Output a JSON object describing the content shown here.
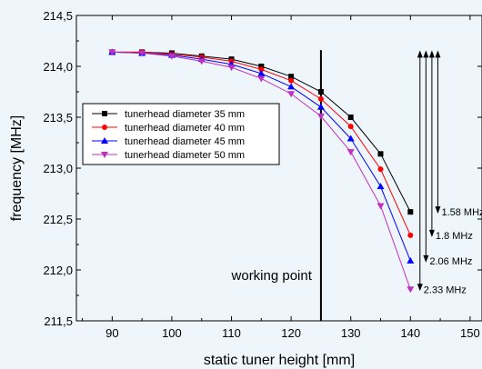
{
  "chart_data": {
    "type": "line",
    "xlabel": "static tuner height [mm]",
    "ylabel": "frequency [MHz]",
    "xlim": [
      84,
      152
    ],
    "ylim": [
      211.5,
      214.5
    ],
    "x_ticks": [
      90,
      100,
      110,
      120,
      130,
      140,
      150
    ],
    "y_ticks": [
      211.5,
      212.0,
      212.5,
      213.0,
      213.5,
      214.0,
      214.5
    ],
    "x_tick_labels": [
      "90",
      "100",
      "110",
      "120",
      "130",
      "140",
      "150"
    ],
    "y_tick_labels": [
      "211,5",
      "212,0",
      "212,5",
      "213,0",
      "213,5",
      "214,0",
      "214,5"
    ],
    "x": [
      90,
      95,
      100,
      105,
      110,
      115,
      120,
      125,
      130,
      135,
      140
    ],
    "series": [
      {
        "name": "tunerhead diameter 35 mm",
        "color": "#000000",
        "marker": "square",
        "values": [
          214.14,
          214.14,
          214.13,
          214.1,
          214.07,
          214.0,
          213.9,
          213.75,
          213.5,
          213.14,
          212.57
        ]
      },
      {
        "name": "tunerhead diameter 40 mm",
        "color": "#ff0000",
        "marker": "circle",
        "values": [
          214.14,
          214.14,
          214.12,
          214.09,
          214.05,
          213.97,
          213.86,
          213.68,
          213.41,
          212.99,
          212.34
        ]
      },
      {
        "name": "tunerhead diameter 45 mm",
        "color": "#0000ff",
        "marker": "triangle-up",
        "values": [
          214.14,
          214.13,
          214.11,
          214.07,
          214.02,
          213.93,
          213.8,
          213.6,
          213.29,
          212.82,
          212.09
        ]
      },
      {
        "name": "tunerhead diameter 50 mm",
        "color": "#c030c0",
        "marker": "triangle-down",
        "values": [
          214.14,
          214.13,
          214.1,
          214.05,
          213.99,
          213.88,
          213.73,
          213.51,
          213.16,
          212.63,
          211.81
        ]
      }
    ],
    "vertical_line": {
      "x": 125,
      "label": "working point"
    },
    "annotations": [
      {
        "x": 141.6,
        "y_from": 211.81,
        "y_to": 214.14,
        "label": "2.33 MHz"
      },
      {
        "x": 142.6,
        "y_from": 212.09,
        "y_to": 214.14,
        "label": "2.06 MHz"
      },
      {
        "x": 143.6,
        "y_from": 212.34,
        "y_to": 214.14,
        "label": "1.8 MHz"
      },
      {
        "x": 144.6,
        "y_from": 212.57,
        "y_to": 214.14,
        "label": "1.58 MHz"
      }
    ],
    "legend_position": "middle-left",
    "grid": false
  }
}
